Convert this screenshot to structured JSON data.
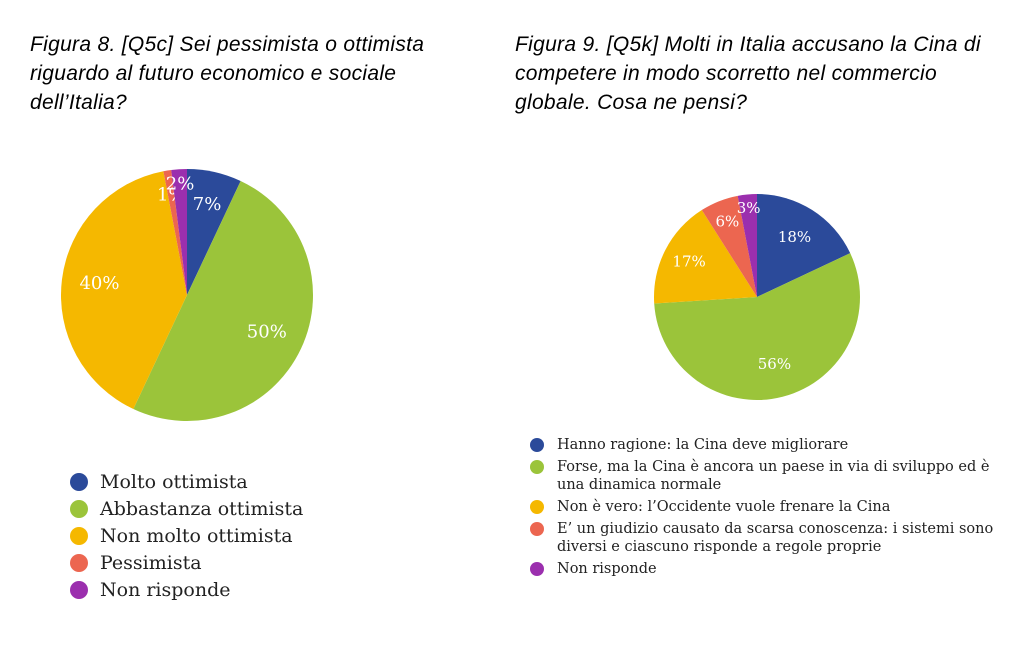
{
  "chart_data": [
    {
      "type": "pie",
      "title": "Figura 8. [Q5c] Sei pessimista o ottimista riguardo al futuro economico e sociale dell’Italia?",
      "categories": [
        "Molto ottimista",
        "Abbastanza ottimista",
        "Non molto ottimista",
        "Pessimista",
        "Non risponde"
      ],
      "values": [
        7,
        50,
        40,
        1,
        2
      ],
      "labels": [
        "7%",
        "50%",
        "40%",
        "1%",
        "2%"
      ],
      "colors": [
        "#2b4a9a",
        "#9bc43a",
        "#f5b800",
        "#ec6650",
        "#9b2fae"
      ],
      "legend_position": "bottom"
    },
    {
      "type": "pie",
      "title": "Figura 9. [Q5k] Molti in Italia accusano la Cina di competere in modo scorretto nel commercio globale. Cosa ne pensi?",
      "categories": [
        "Hanno ragione: la Cina deve migliorare",
        "Forse, ma la Cina è ancora un paese in via di sviluppo ed è una dinamica normale",
        "Non è vero: l’Occidente vuole frenare la Cina",
        "E’ un giudizio causato da scarsa conoscenza: i sistemi sono diversi e ciascuno risponde a regole proprie",
        "Non risponde"
      ],
      "values": [
        18,
        56,
        17,
        6,
        3
      ],
      "labels": [
        "18%",
        "56%",
        "17%",
        "6%",
        "3%"
      ],
      "colors": [
        "#2b4a9a",
        "#9bc43a",
        "#f5b800",
        "#ec6650",
        "#9b2fae"
      ],
      "legend_position": "bottom"
    }
  ]
}
